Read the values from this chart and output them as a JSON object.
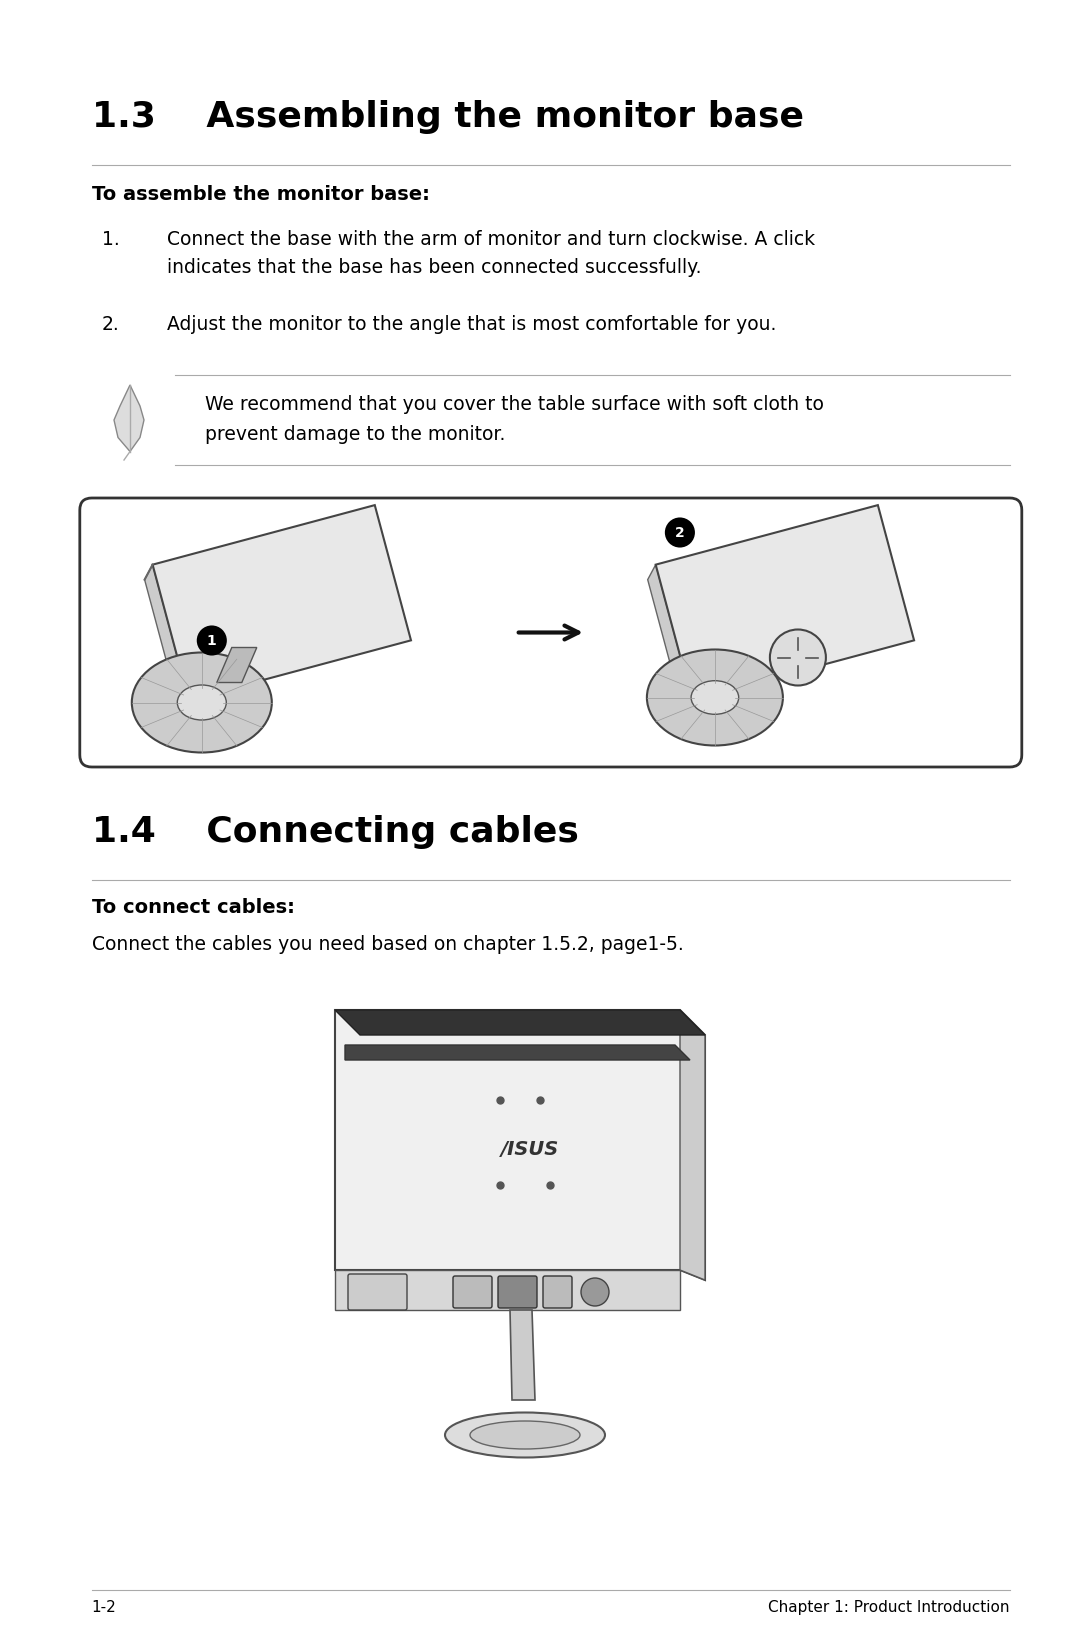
{
  "bg_color": "#ffffff",
  "ml": 0.085,
  "mr": 0.935,
  "section1_title": "1.3    Assembling the monitor base",
  "section1_subtitle": "To assemble the monitor base:",
  "step1_num": "1.",
  "step1_text_line1": "Connect the base with the arm of monitor and turn clockwise. A click",
  "step1_text_line2": "indicates that the base has been connected successfully.",
  "step2_num": "2.",
  "step2_text": "Adjust the monitor to the angle that is most comfortable for you.",
  "note_line1": "We recommend that you cover the table surface with soft cloth to",
  "note_line2": "prevent damage to the monitor.",
  "section2_title": "1.4    Connecting cables",
  "section2_subtitle": "To connect cables:",
  "connect_text": "Connect the cables you need based on chapter 1.5.2, page1-5.",
  "footer_left": "1-2",
  "footer_right": "Chapter 1: Product Introduction",
  "title_fontsize": 26,
  "subtitle_fontsize": 14,
  "body_fontsize": 13.5,
  "footer_fontsize": 11,
  "text_color": "#000000",
  "line_color": "#aaaaaa"
}
